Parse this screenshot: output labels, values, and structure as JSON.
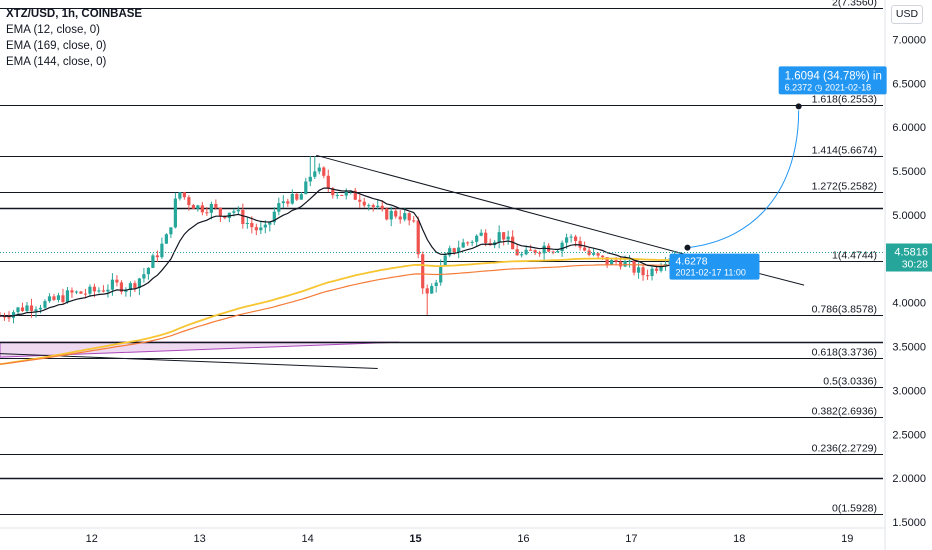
{
  "header": {
    "symbol": "XTZ/USD, 1h, COINBASE",
    "indicators": [
      "EMA (12, close, 0)",
      "EMA (169, close, 0)",
      "EMA (144, close, 0)"
    ],
    "currency_button": "USD"
  },
  "colors": {
    "candle_up": "#26a69a",
    "candle_down": "#ef5350",
    "ema12": "#131722",
    "ema144": "#f7c531",
    "ema169": "#f57c38",
    "projection": "#2196f3",
    "fib_line": "#131722",
    "wedge": "#ce93d8"
  },
  "chart_data": {
    "type": "candlestick",
    "y_range": [
      1.5,
      7.45
    ],
    "y_ticks": [
      {
        "value": 1.5,
        "label": "1.5000"
      },
      {
        "value": 2.0,
        "label": "2.0000"
      },
      {
        "value": 2.5,
        "label": "2.5000"
      },
      {
        "value": 3.0,
        "label": "3.0000"
      },
      {
        "value": 3.5,
        "label": "3.5000"
      },
      {
        "value": 4.0,
        "label": "4.0000"
      },
      {
        "value": 4.5,
        "label": "4.5000"
      },
      {
        "value": 5.0,
        "label": "5.0000"
      },
      {
        "value": 5.5,
        "label": "5.5000"
      },
      {
        "value": 6.0,
        "label": "6.0000"
      },
      {
        "value": 6.5,
        "label": "6.5000"
      },
      {
        "value": 7.0,
        "label": "7.0000"
      }
    ],
    "x_ticks": [
      {
        "day": 12,
        "label": "12"
      },
      {
        "day": 13,
        "label": "13"
      },
      {
        "day": 14,
        "label": "14"
      },
      {
        "day": 15,
        "label": "15",
        "bold": true
      },
      {
        "day": 16,
        "label": "16"
      },
      {
        "day": 17,
        "label": "17"
      },
      {
        "day": 18,
        "label": "18"
      },
      {
        "day": 19,
        "label": "19"
      }
    ],
    "x_range_days": [
      11.15,
      19.35
    ],
    "last_price": {
      "value": 4.5816,
      "label": "4.5816",
      "countdown": "30:28"
    },
    "fib_levels": [
      {
        "value": 7.356,
        "label": "2(7.3560)"
      },
      {
        "value": 6.2553,
        "label": "1.618(6.2553)"
      },
      {
        "value": 5.6674,
        "label": "1.414(5.6674)"
      },
      {
        "value": 5.2582,
        "label": "1.272(5.2582)"
      },
      {
        "value": 4.4744,
        "label": "1(4.4744)"
      },
      {
        "value": 3.8578,
        "label": "0.786(3.8578)"
      },
      {
        "value": 3.3736,
        "label": "0.618(3.3736)"
      },
      {
        "value": 3.0336,
        "label": "0.5(3.0336)"
      },
      {
        "value": 2.6936,
        "label": "0.382(2.6936)"
      },
      {
        "value": 2.2729,
        "label": "0.236(2.2729)"
      },
      {
        "value": 1.5928,
        "label": "0(1.5928)"
      }
    ],
    "extra_levels": [
      5.08,
      3.55,
      2.0
    ],
    "trendline_upper": [
      [
        14.08,
        5.68
      ],
      [
        17.5,
        4.55
      ],
      [
        18.6,
        4.2
      ]
    ],
    "trendline_lower": [
      [
        11.15,
        3.42
      ],
      [
        14.65,
        3.25
      ]
    ],
    "wedge": [
      [
        11.15,
        3.38
      ],
      [
        14.85,
        3.55
      ],
      [
        11.15,
        3.55
      ]
    ],
    "projection": {
      "start": [
        17.52,
        4.6278
      ],
      "end": [
        18.55,
        6.2372
      ],
      "start_label": {
        "value": "4.6278",
        "date": "2021-02-17 11:00"
      },
      "end_label": {
        "change": "1.6094 (34.78%) in",
        "value": "6.2372",
        "date": "2021-02-18"
      }
    },
    "price_path": [
      [
        11.15,
        3.85
      ],
      [
        11.4,
        3.96
      ],
      [
        11.6,
        4.0
      ],
      [
        11.8,
        4.1
      ],
      [
        12.0,
        4.12
      ],
      [
        12.2,
        4.2
      ],
      [
        12.35,
        4.18
      ],
      [
        12.5,
        4.35
      ],
      [
        12.6,
        4.55
      ],
      [
        12.7,
        4.75
      ],
      [
        12.75,
        5.0
      ],
      [
        12.8,
        5.28
      ],
      [
        12.9,
        5.15
      ],
      [
        13.0,
        5.08
      ],
      [
        13.1,
        5.1
      ],
      [
        13.2,
        5.0
      ],
      [
        13.3,
        5.07
      ],
      [
        13.4,
        4.95
      ],
      [
        13.5,
        4.85
      ],
      [
        13.6,
        4.8
      ],
      [
        13.7,
        5.05
      ],
      [
        13.8,
        5.2
      ],
      [
        13.9,
        5.15
      ],
      [
        14.0,
        5.35
      ],
      [
        14.05,
        5.55
      ],
      [
        14.1,
        5.5
      ],
      [
        14.2,
        5.3
      ],
      [
        14.3,
        5.25
      ],
      [
        14.4,
        5.22
      ],
      [
        14.5,
        5.2
      ],
      [
        14.6,
        5.1
      ],
      [
        14.7,
        5.0
      ],
      [
        14.8,
        5.02
      ],
      [
        14.9,
        4.98
      ],
      [
        15.0,
        4.85
      ],
      [
        15.05,
        4.3
      ],
      [
        15.1,
        4.05
      ],
      [
        15.2,
        4.3
      ],
      [
        15.3,
        4.55
      ],
      [
        15.4,
        4.65
      ],
      [
        15.5,
        4.7
      ],
      [
        15.6,
        4.78
      ],
      [
        15.7,
        4.72
      ],
      [
        15.8,
        4.8
      ],
      [
        15.9,
        4.6
      ],
      [
        16.0,
        4.52
      ],
      [
        16.1,
        4.6
      ],
      [
        16.2,
        4.65
      ],
      [
        16.3,
        4.62
      ],
      [
        16.4,
        4.75
      ],
      [
        16.5,
        4.7
      ],
      [
        16.6,
        4.55
      ],
      [
        16.7,
        4.5
      ],
      [
        16.8,
        4.45
      ],
      [
        16.9,
        4.48
      ],
      [
        17.0,
        4.4
      ],
      [
        17.1,
        4.32
      ],
      [
        17.2,
        4.38
      ],
      [
        17.3,
        4.5
      ],
      [
        17.42,
        4.58
      ]
    ]
  }
}
